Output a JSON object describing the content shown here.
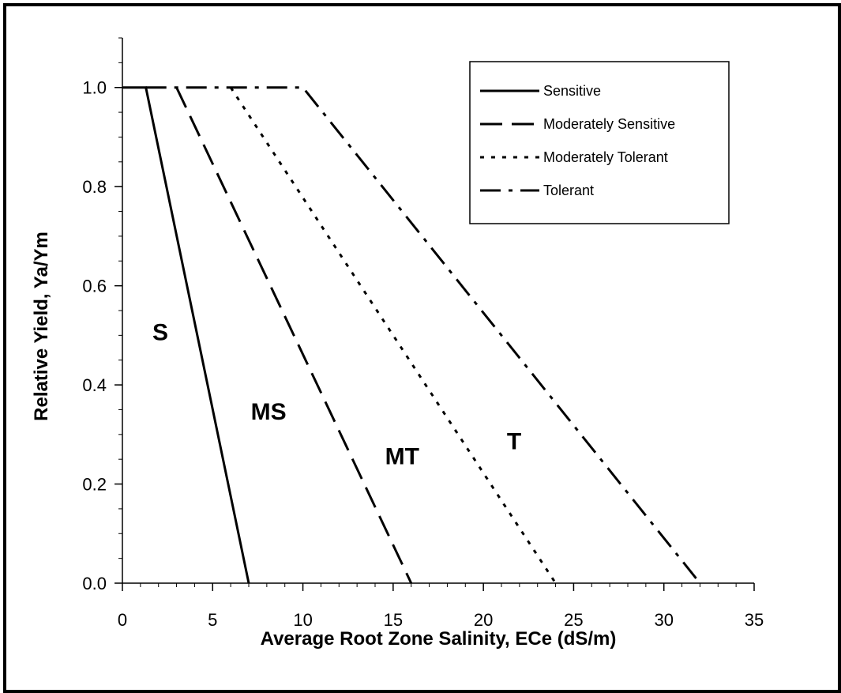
{
  "chart_data": {
    "type": "line",
    "title": "",
    "xlabel": "Average Root Zone Salinity, ECe (dS/m)",
    "ylabel": "Relative Yield, Ya/Ym",
    "xlim": [
      0,
      35
    ],
    "ylim": [
      0,
      1.1
    ],
    "x_ticks": [
      "0",
      "5",
      "10",
      "15",
      "20",
      "25",
      "30",
      "35"
    ],
    "y_ticks": [
      "0.0",
      "0.2",
      "0.4",
      "0.6",
      "0.8",
      "1.0"
    ],
    "x_tick_values": [
      0,
      5,
      10,
      15,
      20,
      25,
      30,
      35
    ],
    "y_tick_values": [
      0,
      0.2,
      0.4,
      0.6,
      0.8,
      1.0
    ],
    "grid": false,
    "legend_position": "top-right",
    "series": [
      {
        "name": "Sensitive",
        "style": "solid",
        "x": [
          0,
          1.3,
          7.0
        ],
        "y": [
          1.0,
          1.0,
          0.0
        ]
      },
      {
        "name": "Moderately Sensitive",
        "style": "dashed",
        "x": [
          3.0,
          16.0
        ],
        "y": [
          1.0,
          0.0
        ]
      },
      {
        "name": "Moderately Tolerant",
        "style": "dotted",
        "x": [
          6.0,
          24.0
        ],
        "y": [
          1.0,
          0.0
        ]
      },
      {
        "name": "Tolerant",
        "style": "dash-dot",
        "x": [
          1.3,
          10.0,
          32.0
        ],
        "y": [
          1.0,
          1.0,
          0.0
        ]
      }
    ],
    "annotations": [
      {
        "text": "S",
        "x": 2.1,
        "y": 0.49
      },
      {
        "text": "MS",
        "x": 8.1,
        "y": 0.33
      },
      {
        "text": "MT",
        "x": 15.5,
        "y": 0.24
      },
      {
        "text": "T",
        "x": 21.7,
        "y": 0.27
      }
    ]
  },
  "colors": {
    "line": "#000000",
    "background": "#ffffff"
  }
}
